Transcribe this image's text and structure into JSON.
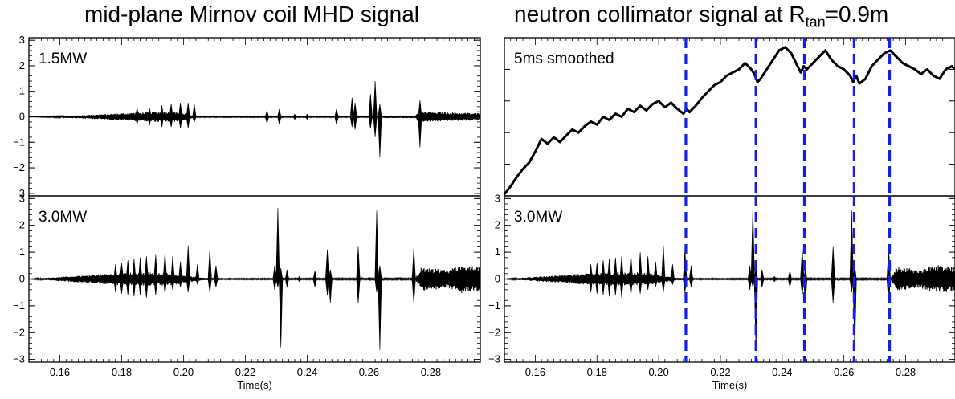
{
  "titles": {
    "left": "mid-plane Mirnov coil MHD signal",
    "right_main": "neutron collimator signal at R",
    "right_sub": "tan",
    "right_tail": "=0.9m"
  },
  "chart_data": [
    {
      "id": "left-top",
      "type": "line",
      "label": "1.5MW",
      "xlim": [
        0.15,
        0.296
      ],
      "ylim": [
        -3.1,
        3.1
      ],
      "y_ticks": [
        -3,
        -2,
        -1,
        0,
        1,
        2,
        3
      ],
      "x_ticks": [],
      "baseline_amp": [
        [
          0.15,
          0.005
        ],
        [
          0.16,
          0.03
        ],
        [
          0.17,
          0.08
        ],
        [
          0.18,
          0.14
        ],
        [
          0.19,
          0.2
        ],
        [
          0.196,
          0.22
        ],
        [
          0.2,
          0.15
        ],
        [
          0.204,
          0.02
        ],
        [
          0.26,
          0.02
        ],
        [
          0.263,
          0.05
        ],
        [
          0.275,
          0.05
        ],
        [
          0.276,
          0.22
        ],
        [
          0.285,
          0.18
        ],
        [
          0.296,
          0.14
        ]
      ],
      "spikes": [
        [
          0.185,
          0.35,
          0.3
        ],
        [
          0.189,
          0.35,
          0.35
        ],
        [
          0.193,
          0.45,
          0.4
        ],
        [
          0.196,
          0.5,
          0.4
        ],
        [
          0.199,
          0.55,
          0.45
        ],
        [
          0.2015,
          0.55,
          0.45
        ],
        [
          0.2035,
          0.5,
          0.2
        ],
        [
          0.227,
          0.25,
          0.25
        ],
        [
          0.231,
          0.3,
          0.3
        ],
        [
          0.236,
          0.1,
          0.1
        ],
        [
          0.24,
          0.1,
          0.1
        ],
        [
          0.2495,
          0.3,
          0.3
        ],
        [
          0.2545,
          0.75,
          0.4
        ],
        [
          0.2555,
          0.55,
          0.5
        ],
        [
          0.2605,
          0.9,
          0.45
        ],
        [
          0.262,
          1.4,
          0.8
        ],
        [
          0.2635,
          0.5,
          1.6
        ],
        [
          0.2765,
          0.65,
          1.2
        ]
      ]
    },
    {
      "id": "left-bottom",
      "type": "line",
      "label": "3.0MW",
      "xlim": [
        0.15,
        0.296
      ],
      "ylim": [
        -3.1,
        3.1
      ],
      "y_ticks": [
        -3,
        -2,
        -1,
        0,
        1,
        2,
        3
      ],
      "x_ticks": [
        0.16,
        0.18,
        0.2,
        0.22,
        0.24,
        0.26,
        0.28
      ],
      "xlabel": "Time(s)",
      "baseline_amp": [
        [
          0.15,
          0.005
        ],
        [
          0.156,
          0.05
        ],
        [
          0.165,
          0.12
        ],
        [
          0.175,
          0.2
        ],
        [
          0.185,
          0.25
        ],
        [
          0.195,
          0.25
        ],
        [
          0.206,
          0.05
        ],
        [
          0.212,
          0.02
        ],
        [
          0.275,
          0.03
        ],
        [
          0.277,
          0.45
        ],
        [
          0.285,
          0.35
        ],
        [
          0.29,
          0.55
        ],
        [
          0.296,
          0.45
        ]
      ],
      "spikes": [
        [
          0.178,
          0.55,
          0.5
        ],
        [
          0.18,
          0.6,
          0.55
        ],
        [
          0.182,
          0.7,
          0.6
        ],
        [
          0.184,
          0.75,
          0.65
        ],
        [
          0.186,
          0.8,
          0.6
        ],
        [
          0.188,
          0.85,
          0.7
        ],
        [
          0.191,
          0.9,
          0.6
        ],
        [
          0.194,
          1.0,
          0.55
        ],
        [
          0.1965,
          0.85,
          0.4
        ],
        [
          0.199,
          0.65,
          0.3
        ],
        [
          0.2015,
          1.25,
          0.5
        ],
        [
          0.2045,
          0.55,
          0.2
        ],
        [
          0.2085,
          1.1,
          0.5
        ],
        [
          0.2105,
          0.5,
          0.3
        ],
        [
          0.2305,
          2.65,
          0.3
        ],
        [
          0.2315,
          0.4,
          2.55
        ],
        [
          0.2295,
          0.5,
          0.4
        ],
        [
          0.2335,
          0.35,
          0.3
        ],
        [
          0.2375,
          0.1,
          0.1
        ],
        [
          0.2425,
          0.3,
          0.3
        ],
        [
          0.2465,
          1.1,
          0.6
        ],
        [
          0.2475,
          0.35,
          0.9
        ],
        [
          0.2565,
          1.2,
          0.9
        ],
        [
          0.2625,
          2.55,
          0.5
        ],
        [
          0.2635,
          0.5,
          2.65
        ],
        [
          0.2745,
          1.15,
          0.9
        ]
      ]
    },
    {
      "id": "right-top",
      "type": "line",
      "label": "5ms smoothed",
      "xlim": [
        0.15,
        0.296
      ],
      "ylim": [
        0.0,
        1.0
      ],
      "y_ticks": [],
      "x_ticks": [],
      "vlines": [
        0.2088,
        0.2315,
        0.2472,
        0.2633,
        0.2748
      ],
      "x": [
        0.15,
        0.152,
        0.154,
        0.156,
        0.158,
        0.16,
        0.162,
        0.164,
        0.166,
        0.168,
        0.17,
        0.172,
        0.174,
        0.176,
        0.178,
        0.18,
        0.182,
        0.184,
        0.186,
        0.188,
        0.19,
        0.192,
        0.194,
        0.196,
        0.198,
        0.2,
        0.202,
        0.204,
        0.206,
        0.208,
        0.209,
        0.21,
        0.212,
        0.214,
        0.216,
        0.218,
        0.22,
        0.222,
        0.224,
        0.226,
        0.228,
        0.23,
        0.231,
        0.232,
        0.233,
        0.235,
        0.237,
        0.239,
        0.241,
        0.243,
        0.245,
        0.246,
        0.247,
        0.248,
        0.25,
        0.252,
        0.254,
        0.256,
        0.258,
        0.26,
        0.262,
        0.263,
        0.264,
        0.265,
        0.267,
        0.269,
        0.271,
        0.273,
        0.275,
        0.277,
        0.279,
        0.281,
        0.283,
        0.285,
        0.287,
        0.289,
        0.291,
        0.293,
        0.295,
        0.296
      ],
      "y": [
        0.01,
        0.06,
        0.12,
        0.17,
        0.21,
        0.28,
        0.36,
        0.33,
        0.37,
        0.34,
        0.38,
        0.42,
        0.4,
        0.44,
        0.47,
        0.45,
        0.5,
        0.48,
        0.52,
        0.5,
        0.55,
        0.53,
        0.57,
        0.54,
        0.58,
        0.6,
        0.56,
        0.59,
        0.55,
        0.52,
        0.55,
        0.53,
        0.57,
        0.62,
        0.66,
        0.7,
        0.72,
        0.76,
        0.78,
        0.8,
        0.84,
        0.8,
        0.77,
        0.72,
        0.74,
        0.8,
        0.86,
        0.92,
        0.94,
        0.9,
        0.82,
        0.78,
        0.82,
        0.8,
        0.84,
        0.88,
        0.92,
        0.86,
        0.82,
        0.8,
        0.76,
        0.72,
        0.76,
        0.71,
        0.74,
        0.82,
        0.86,
        0.9,
        0.92,
        0.88,
        0.84,
        0.82,
        0.8,
        0.77,
        0.8,
        0.76,
        0.74,
        0.8,
        0.82,
        0.8
      ]
    },
    {
      "id": "right-bottom",
      "type": "line",
      "label": "3.0MW",
      "xlim": [
        0.15,
        0.296
      ],
      "ylim": [
        -3.1,
        3.1
      ],
      "y_ticks": [
        -3,
        -2,
        -1,
        0,
        1,
        2,
        3
      ],
      "x_ticks": [
        0.16,
        0.18,
        0.2,
        0.22,
        0.24,
        0.26,
        0.28
      ],
      "xlabel": "Time(s)",
      "vlines": [
        0.2088,
        0.2315,
        0.2472,
        0.2633,
        0.2748
      ],
      "baseline_amp": [
        [
          0.15,
          0.005
        ],
        [
          0.156,
          0.05
        ],
        [
          0.165,
          0.12
        ],
        [
          0.175,
          0.2
        ],
        [
          0.185,
          0.25
        ],
        [
          0.195,
          0.25
        ],
        [
          0.206,
          0.05
        ],
        [
          0.212,
          0.02
        ],
        [
          0.275,
          0.03
        ],
        [
          0.277,
          0.45
        ],
        [
          0.285,
          0.35
        ],
        [
          0.29,
          0.55
        ],
        [
          0.296,
          0.45
        ]
      ],
      "spikes": [
        [
          0.178,
          0.55,
          0.5
        ],
        [
          0.18,
          0.6,
          0.55
        ],
        [
          0.182,
          0.7,
          0.6
        ],
        [
          0.184,
          0.75,
          0.65
        ],
        [
          0.186,
          0.8,
          0.6
        ],
        [
          0.188,
          0.85,
          0.7
        ],
        [
          0.191,
          0.9,
          0.6
        ],
        [
          0.194,
          1.0,
          0.55
        ],
        [
          0.1965,
          0.85,
          0.4
        ],
        [
          0.199,
          0.65,
          0.3
        ],
        [
          0.2015,
          1.25,
          0.5
        ],
        [
          0.2045,
          0.55,
          0.2
        ],
        [
          0.2085,
          1.1,
          0.5
        ],
        [
          0.2105,
          0.5,
          0.3
        ],
        [
          0.2305,
          2.65,
          0.3
        ],
        [
          0.2315,
          0.4,
          2.55
        ],
        [
          0.2295,
          0.5,
          0.4
        ],
        [
          0.2335,
          0.35,
          0.3
        ],
        [
          0.2375,
          0.1,
          0.1
        ],
        [
          0.2425,
          0.3,
          0.3
        ],
        [
          0.2465,
          1.1,
          0.6
        ],
        [
          0.2475,
          0.35,
          0.9
        ],
        [
          0.2565,
          1.2,
          0.9
        ],
        [
          0.2625,
          2.55,
          0.5
        ],
        [
          0.2635,
          0.5,
          2.65
        ],
        [
          0.2745,
          1.15,
          0.9
        ]
      ]
    }
  ],
  "colors": {
    "signal": "#000000",
    "vline": "#1520e0",
    "axis": "#000000"
  }
}
